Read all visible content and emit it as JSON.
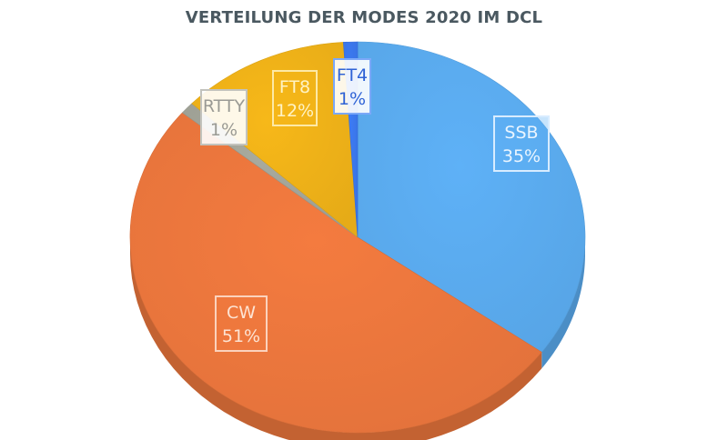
{
  "chart_data": {
    "type": "pie",
    "title": "VERTEILUNG DER MODES 2020 IM DCL",
    "slices": [
      {
        "label": "SSB",
        "value": 35,
        "value_label": "35%",
        "color": "#5eb1f7",
        "label_color": "#eaf5ff"
      },
      {
        "label": "CW",
        "value": 51,
        "value_label": "51%",
        "color": "#f47b3f",
        "label_color": "#fde3d3"
      },
      {
        "label": "RTTY",
        "value": 1,
        "value_label": "1%",
        "color": "#a8aa9e",
        "label_color": "#9a9a94"
      },
      {
        "label": "FT8",
        "value": 12,
        "value_label": "12%",
        "color": "#f7b819",
        "label_color": "#fff3c4"
      },
      {
        "label": "FT4",
        "value": 1,
        "value_label": "1%",
        "color": "#3d7cf5",
        "label_color": "#2f63d6"
      }
    ],
    "legend": "none",
    "style": "3d-tilted"
  }
}
